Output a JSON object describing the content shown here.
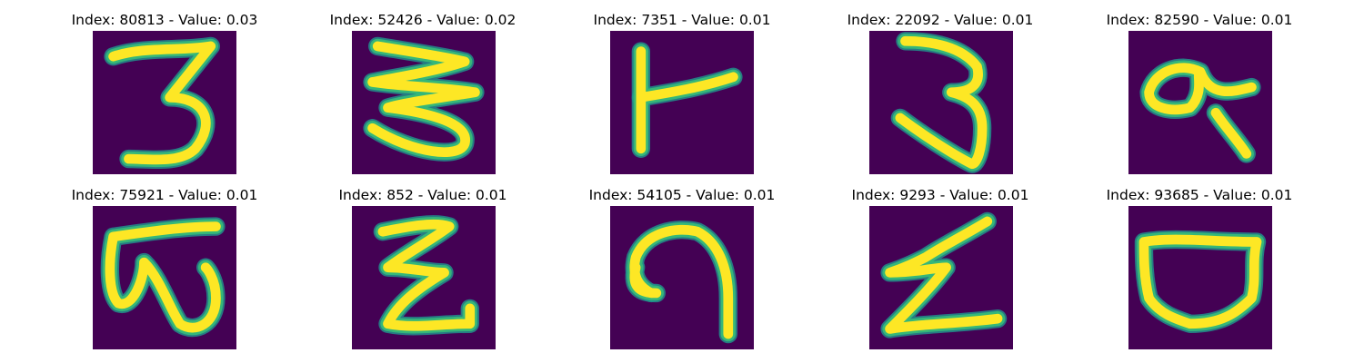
{
  "colors": {
    "background": "#440154",
    "stroke_core": "#fde725",
    "stroke_edge": "#35b779",
    "stroke_outer": "#21918c"
  },
  "panels": [
    {
      "title": "Index: 80813 - Value: 0.03",
      "digit": "3"
    },
    {
      "title": "Index: 52426 - Value: 0.02",
      "digit": "3"
    },
    {
      "title": "Index: 7351 - Value: 0.01",
      "digit": "hook-T"
    },
    {
      "title": "Index: 22092 - Value: 0.01",
      "digit": "3"
    },
    {
      "title": "Index: 82590 - Value: 0.01",
      "digit": "loop-glyph"
    },
    {
      "title": "Index: 75921 - Value: 0.01",
      "digit": "w-glyph"
    },
    {
      "title": "Index: 852 - Value: 0.01",
      "digit": "zigzag-z"
    },
    {
      "title": "Index: 54105 - Value: 0.01",
      "digit": "curl-glyph"
    },
    {
      "title": "Index: 9293 - Value: 0.01",
      "digit": "zigzag-z"
    },
    {
      "title": "Index: 93685 - Value: 0.01",
      "digit": "bowl-glyph"
    }
  ]
}
